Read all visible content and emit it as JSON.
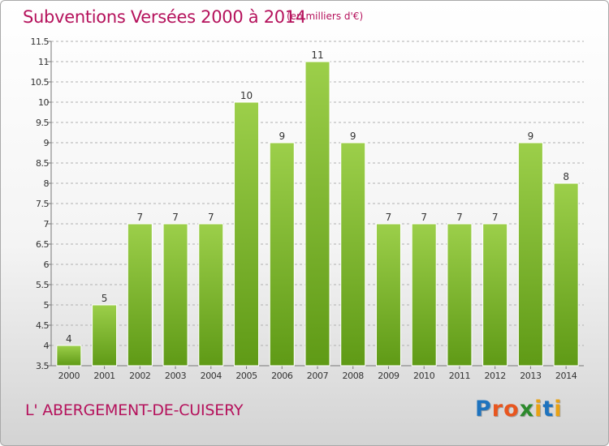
{
  "header": {
    "title": "Subventions Versées 2000 à 2014",
    "unit_note": "(en milliers d'€)"
  },
  "footer": {
    "commune": "L' ABERGEMENT-DE-CUISERY",
    "logo_text": "Proxiti",
    "logo_colors": [
      "#1e73be",
      "#e8561f",
      "#e8561f",
      "#2d8a2d",
      "#e8a215",
      "#1e73be",
      "#e8a215"
    ]
  },
  "colors": {
    "bar_top": "#9ccf4a",
    "bar_bottom": "#5f9a16",
    "accent": "#b5125c",
    "grid": "#b0b0b0"
  },
  "chart_data": {
    "type": "bar",
    "title": "Subventions Versées 2000 à 2014",
    "subtitle": "(en milliers d'€)",
    "categories": [
      "2000",
      "2001",
      "2002",
      "2003",
      "2004",
      "2005",
      "2006",
      "2007",
      "2008",
      "2009",
      "2010",
      "2011",
      "2012",
      "2013",
      "2014"
    ],
    "values": [
      4,
      5,
      7,
      7,
      7,
      10,
      9,
      11,
      9,
      7,
      7,
      7,
      7,
      9,
      8
    ],
    "ylim": [
      3.5,
      11.5
    ],
    "yticks": [
      "3.5",
      "4",
      "4.5",
      "5",
      "5.5",
      "6",
      "6.5",
      "7",
      "7.5",
      "8",
      "8.5",
      "9",
      "9.5",
      "10",
      "10.5",
      "11",
      "11.5"
    ],
    "grid": "horizontal dashed",
    "legend": "none"
  }
}
